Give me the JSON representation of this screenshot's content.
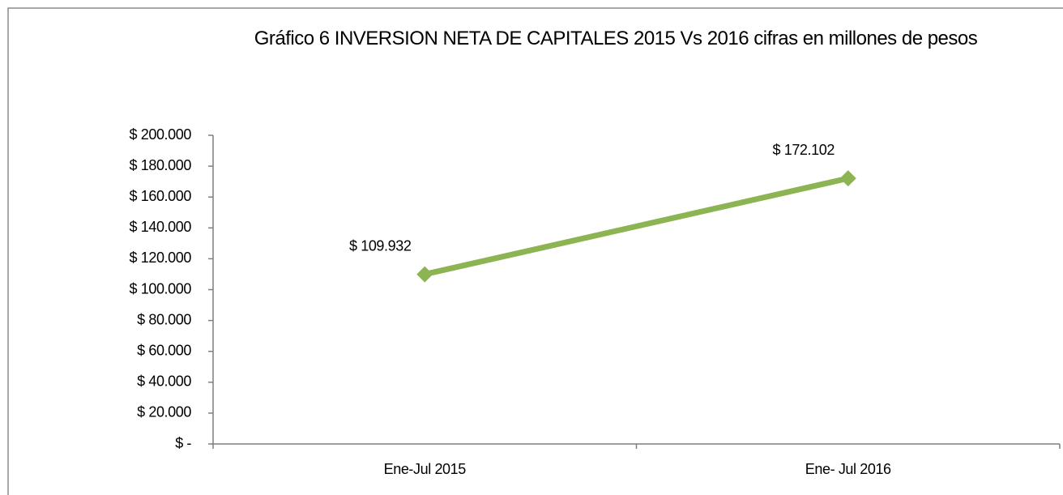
{
  "chart_data": {
    "type": "line",
    "title": "Gráfico 6 INVERSION NETA  DE CAPITALES 2015 Vs 2016 cifras en  millones  de pesos",
    "categories": [
      "Ene-Jul 2015",
      "Ene- Jul 2016"
    ],
    "values": [
      109932,
      172102
    ],
    "value_labels": [
      "$ 109.932",
      "$ 172.102"
    ],
    "color": "#8db452",
    "ylim": [
      0,
      200000
    ],
    "yticks": [
      {
        "value": 0,
        "label": "$ -"
      },
      {
        "value": 20000,
        "label": "$ 20.000"
      },
      {
        "value": 40000,
        "label": "$ 40.000"
      },
      {
        "value": 60000,
        "label": "$ 60.000"
      },
      {
        "value": 80000,
        "label": "$ 80.000"
      },
      {
        "value": 100000,
        "label": "$ 100.000"
      },
      {
        "value": 120000,
        "label": "$ 120.000"
      },
      {
        "value": 140000,
        "label": "$ 140.000"
      },
      {
        "value": 160000,
        "label": "$ 160.000"
      },
      {
        "value": 180000,
        "label": "$ 180.000"
      },
      {
        "value": 200000,
        "label": "$ 200.000"
      }
    ],
    "grid": false
  }
}
